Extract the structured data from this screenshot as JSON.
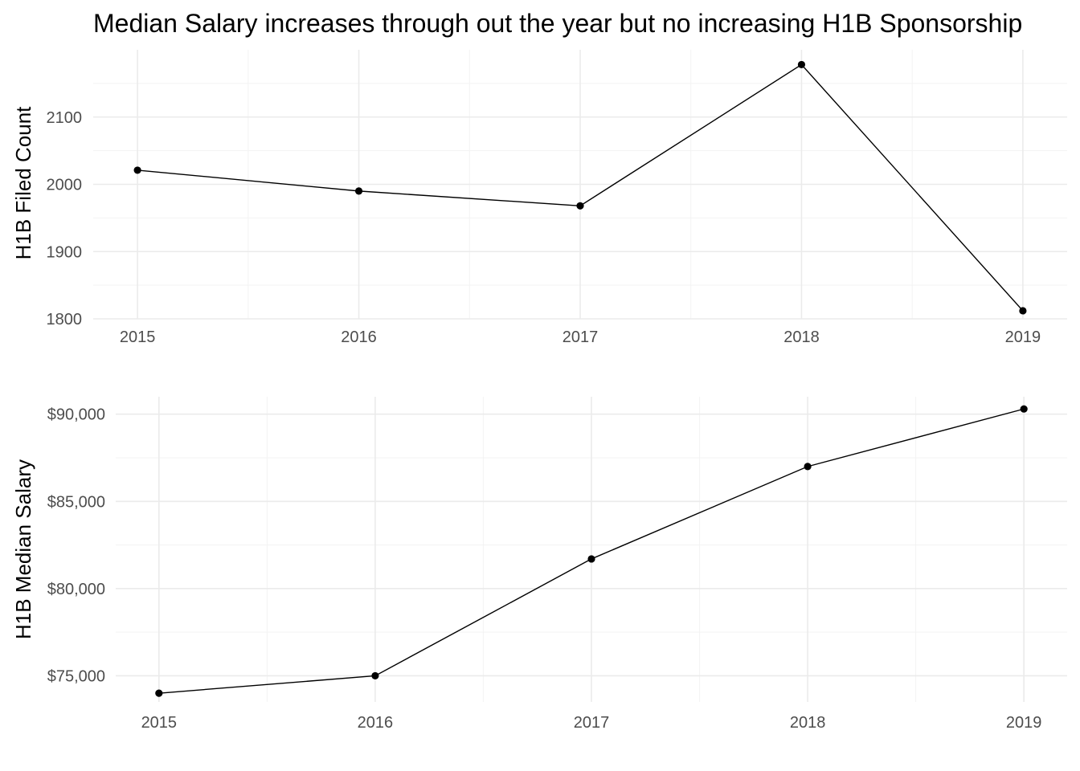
{
  "title": "Median Salary increases through out the year but no increasing H1B Sponsorship",
  "colors": {
    "line": "#000000",
    "point": "#000000",
    "grid": "#ebebeb",
    "tick_text": "#4d4d4d",
    "background": "#ffffff"
  },
  "chart_data": [
    {
      "type": "line",
      "title": "",
      "xlabel": "",
      "ylabel": "H1B Filed Count",
      "categories": [
        "2015",
        "2016",
        "2017",
        "2018",
        "2019"
      ],
      "x": [
        2015,
        2016,
        2017,
        2018,
        2019
      ],
      "values": [
        2021,
        1990,
        1968,
        2178,
        1812
      ],
      "xlim": [
        2014.8,
        2019.2
      ],
      "ylim": [
        1800,
        2200
      ],
      "yticks": [
        1800,
        1900,
        2000,
        2100
      ],
      "ytick_labels": [
        "1800",
        "1900",
        "2000",
        "2100"
      ],
      "grid": true,
      "legend": "none"
    },
    {
      "type": "line",
      "title": "",
      "xlabel": "",
      "ylabel": "H1B Median Salary",
      "categories": [
        "2015",
        "2016",
        "2017",
        "2018",
        "2019"
      ],
      "x": [
        2015,
        2016,
        2017,
        2018,
        2019
      ],
      "values": [
        74000,
        75000,
        81700,
        87000,
        90300
      ],
      "xlim": [
        2014.8,
        2019.2
      ],
      "ylim": [
        73500,
        91000
      ],
      "yticks": [
        75000,
        80000,
        85000,
        90000
      ],
      "ytick_labels": [
        "$75,000",
        "$80,000",
        "$85,000",
        "$90,000"
      ],
      "grid": true,
      "legend": "none"
    }
  ]
}
